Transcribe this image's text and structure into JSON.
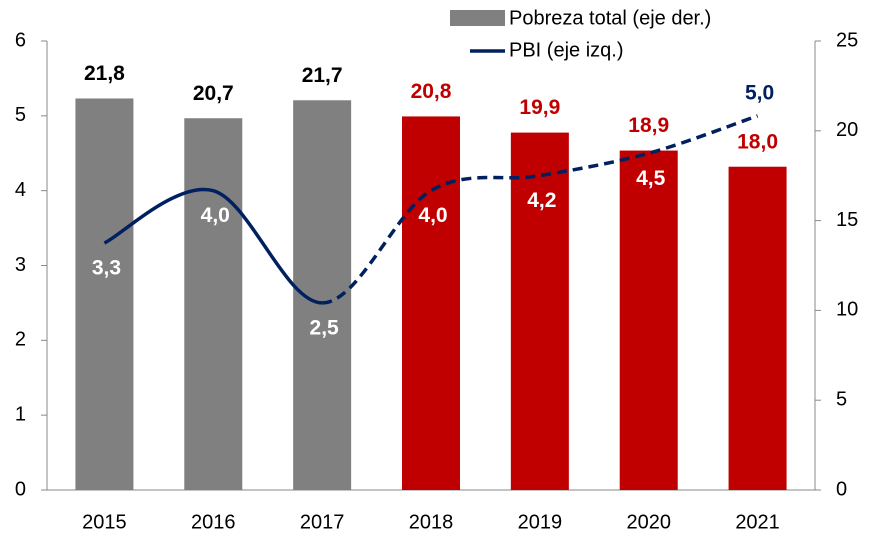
{
  "chart_data": {
    "type": "bar",
    "categories": [
      "2015",
      "2016",
      "2017",
      "2018",
      "2019",
      "2020",
      "2021"
    ],
    "series": [
      {
        "name": "Pobreza total (eje der.)",
        "type": "bar",
        "axis": "y2",
        "color": "#808080",
        "colors": [
          "#808080",
          "#808080",
          "#808080",
          "#c00000",
          "#c00000",
          "#c00000",
          "#c00000"
        ],
        "label_colors": [
          "#000000",
          "#000000",
          "#000000",
          "#c00000",
          "#c00000",
          "#c00000",
          "#c00000"
        ],
        "values": [
          21.8,
          20.7,
          21.7,
          20.8,
          19.9,
          18.9,
          18.0
        ],
        "value_labels": [
          "21,8",
          "20,7",
          "21,7",
          "20,8",
          "19,9",
          "18,9",
          "18,0"
        ]
      },
      {
        "name": "PBI (eje izq.)",
        "type": "line",
        "axis": "y",
        "color": "#002060",
        "dashed_from": 2,
        "label_colors": [
          "#ffffff",
          "#ffffff",
          "#ffffff",
          "#ffffff",
          "#ffffff",
          "#ffffff",
          "#002060"
        ],
        "values": [
          3.3,
          4.0,
          2.5,
          4.0,
          4.2,
          4.5,
          5.0
        ],
        "value_labels": [
          "3,3",
          "4,0",
          "2,5",
          "4,0",
          "4,2",
          "4,5",
          "5,0"
        ]
      }
    ],
    "ylim": [
      0,
      6
    ],
    "yticks": [
      0,
      1,
      2,
      3,
      4,
      5,
      6
    ],
    "y2lim": [
      0,
      25
    ],
    "y2ticks": [
      0,
      5,
      10,
      15,
      20,
      25
    ]
  }
}
